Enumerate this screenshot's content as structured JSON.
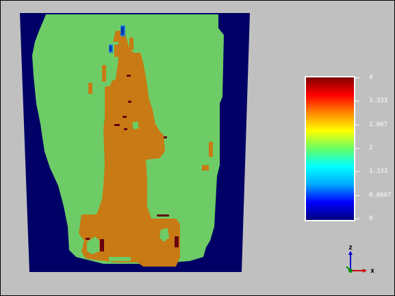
{
  "colors": {
    "background": "#c0c0c0",
    "outside_region": "#000066",
    "body_region": "#6dcc66",
    "core_region": "#c87a14",
    "high_spot": "#660010",
    "cyan_spot": "#1f7fd6"
  },
  "colorbar": {
    "gradient_stops": [
      "#000080",
      "#0000ff",
      "#00aaff",
      "#00ffff",
      "#66ff66",
      "#ffff00",
      "#ff8800",
      "#ff0000",
      "#800000"
    ],
    "ticks": [
      "4",
      "3.333",
      "2.667",
      "2",
      "1.333",
      "0.6667",
      "0"
    ],
    "tick_fractions": [
      1,
      0.8333,
      0.6667,
      0.5,
      0.3333,
      0.1667,
      0
    ]
  },
  "axes": {
    "z_label": "z",
    "x_label": "x"
  }
}
